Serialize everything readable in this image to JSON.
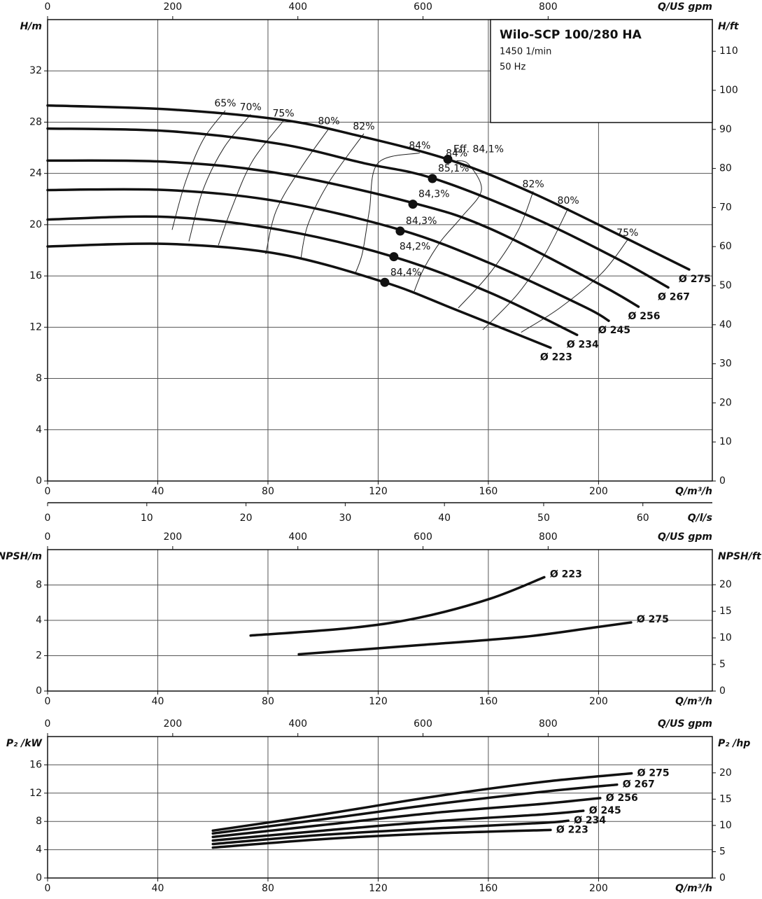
{
  "chart_data": [
    {
      "type": "line",
      "y_label": "H/m",
      "y2_label": "H/ft",
      "x_label": "Q/m³/h",
      "x2_label": "Q/US gpm",
      "x3_label": "Q/l/s",
      "info_box": {
        "title": "Wilo-SCP 100/280 HA",
        "lines": [
          "1450 1/min",
          "50 Hz"
        ]
      },
      "xlim": [
        0,
        241.3
      ],
      "xticks": [
        0,
        40,
        80,
        120,
        160,
        200
      ],
      "x2lim": [
        0,
        1062.4
      ],
      "x2ticks": [
        0,
        200,
        400,
        600,
        800
      ],
      "x3lim": [
        0,
        67.0
      ],
      "x3ticks": [
        0,
        10,
        20,
        30,
        40,
        50,
        60
      ],
      "ylim": [
        0,
        36
      ],
      "yticks": [
        0,
        4,
        8,
        12,
        16,
        20,
        24,
        28,
        32
      ],
      "y2lim": [
        0,
        118.1
      ],
      "y2ticks": [
        0,
        10,
        20,
        30,
        40,
        50,
        60,
        70,
        80,
        90,
        100,
        110
      ],
      "grid": true,
      "series": [
        {
          "name": "Ø 275",
          "color": "#111111",
          "x": [
            0,
            43.7,
            84.3,
            109.7,
            145.3,
            175.7,
            211.3,
            232.9
          ],
          "values": [
            29.3,
            29.0,
            28.2,
            27.1,
            25.1,
            22.5,
            18.8,
            16.5
          ]
        },
        {
          "name": "Ø 267",
          "color": "#111111",
          "x": [
            0,
            43.7,
            84.3,
            114.8,
            140.2,
            175.7,
            206.2,
            225.3
          ],
          "values": [
            27.5,
            27.3,
            26.3,
            24.8,
            23.6,
            20.6,
            17.4,
            15.1
          ]
        },
        {
          "name": "Ø 256",
          "color": "#111111",
          "x": [
            0,
            43.7,
            84.3,
            132.6,
            160.5,
            199.9,
            214.5
          ],
          "values": [
            25.0,
            24.9,
            24.0,
            21.7,
            19.7,
            15.4,
            13.6
          ]
        },
        {
          "name": "Ø 245",
          "color": "#111111",
          "x": [
            0,
            43.7,
            84.3,
            128,
            160.5,
            194.8,
            203.7
          ],
          "values": [
            22.7,
            22.7,
            21.8,
            19.6,
            17.0,
            13.6,
            12.5
          ]
        },
        {
          "name": "Ø 234",
          "color": "#111111",
          "x": [
            0,
            43.7,
            84.3,
            125.5,
            160.5,
            192.2
          ],
          "values": [
            20.4,
            20.6,
            19.6,
            17.5,
            14.7,
            11.4
          ]
        },
        {
          "name": "Ø 223",
          "color": "#111111",
          "x": [
            0,
            43.7,
            84.3,
            122.4,
            147.8,
            182.6
          ],
          "values": [
            18.3,
            18.5,
            17.7,
            15.5,
            13.4,
            10.4
          ]
        }
      ],
      "points": [
        {
          "label": "Eff. 84,1%",
          "x": 145.3,
          "y": 25.1
        },
        {
          "label": "85,1%",
          "x": 139.7,
          "y": 23.6
        },
        {
          "label": "84,3%",
          "x": 132.6,
          "y": 21.6
        },
        {
          "label": "84,3%",
          "x": 128,
          "y": 19.5
        },
        {
          "label": "84,2%",
          "x": 125.7,
          "y": 17.5
        },
        {
          "label": "84,4%",
          "x": 122.4,
          "y": 15.5
        }
      ],
      "contours": [
        {
          "label": "65%",
          "x": [
            64.5,
            56.4,
            50,
            45.2
          ],
          "y": [
            28.9,
            26.6,
            23.3,
            19.6
          ]
        },
        {
          "label": "70%",
          "x": [
            73.7,
            64,
            56.4,
            51.3
          ],
          "y": [
            28.6,
            26.0,
            22.7,
            18.7
          ]
        },
        {
          "label": "75%",
          "x": [
            85.6,
            74.2,
            66.5,
            62
          ],
          "y": [
            28.1,
            24.9,
            21.1,
            18.4
          ]
        },
        {
          "label": "80%",
          "x": [
            102.1,
            91.9,
            83,
            79.2
          ],
          "y": [
            27.5,
            24.4,
            21.1,
            17.7
          ]
        },
        {
          "label": "82%",
          "x": [
            114.8,
            102.1,
            94.5,
            91.9
          ],
          "y": [
            27.1,
            23.3,
            20.0,
            17.3
          ]
        },
        {
          "label": "84%",
          "x": [
            135.1,
            119.9,
            116.8,
            114.3,
            111.7
          ],
          "y": [
            25.6,
            24.8,
            21.1,
            17.8,
            16.2
          ]
        },
        {
          "label": "84%",
          "x": [
            148.5,
            152.9,
            157.5,
            150.3,
            142.7,
            136.4,
            133.1
          ],
          "y": [
            25.0,
            24.7,
            22.7,
            20.6,
            18.7,
            16.5,
            14.8
          ]
        },
        {
          "label": "82%",
          "x": [
            176.3,
            170.7,
            160.5,
            149.1
          ],
          "y": [
            22.6,
            19.5,
            16.2,
            13.5
          ]
        },
        {
          "label": "80%",
          "x": [
            189,
            180.8,
            170.7,
            158
          ],
          "y": [
            21.3,
            17.8,
            14.6,
            11.8
          ]
        },
        {
          "label": "75%",
          "x": [
            210.5,
            201.1,
            185.9,
            171.9
          ],
          "y": [
            18.8,
            16.2,
            13.5,
            11.6
          ]
        }
      ]
    },
    {
      "type": "line",
      "y_label": "NPSH/m",
      "y2_label": "NPSH/ft",
      "x_label": "Q/m³/h",
      "x2_label": "Q/US gpm",
      "xlim": [
        0,
        241.3
      ],
      "xticks": [
        0,
        40,
        80,
        120,
        160,
        200
      ],
      "x2lim": [
        0,
        1062.4
      ],
      "x2ticks": [
        0,
        200,
        400,
        600,
        800
      ],
      "ylim": [
        0,
        16
      ],
      "yticks": [
        0,
        2,
        4,
        8
      ],
      "yscale": "stepped",
      "y2lim": [
        0,
        26.6
      ],
      "y2ticks": [
        0,
        5,
        10,
        15,
        20
      ],
      "grid": true,
      "series": [
        {
          "name": "Ø 223",
          "color": "#111111",
          "x": [
            73.7,
            110,
            135,
            160.5,
            180.3
          ],
          "values": [
            3.14,
            3.57,
            4.31,
            6.43,
            9.76
          ]
        },
        {
          "name": "Ø 275",
          "color": "#111111",
          "x": [
            91.2,
            135,
            173,
            198.6,
            211.8
          ],
          "values": [
            2.08,
            2.6,
            3.07,
            3.6,
            3.88
          ]
        }
      ]
    },
    {
      "type": "line",
      "y_label": "P₂ /kW",
      "y2_label": "P₂ /hp",
      "x_label": "Q/m³/h",
      "x2_label": "Q/US gpm",
      "xlim": [
        0,
        241.3
      ],
      "xticks": [
        0,
        40,
        80,
        120,
        160,
        200
      ],
      "x2lim": [
        0,
        1062.4
      ],
      "x2ticks": [
        0,
        200,
        400,
        600,
        800
      ],
      "ylim": [
        0,
        20
      ],
      "yticks": [
        0,
        4,
        8,
        12,
        16
      ],
      "y2lim": [
        0,
        26.9
      ],
      "y2ticks": [
        0,
        5,
        10,
        15,
        20
      ],
      "grid": true,
      "series": [
        {
          "name": "Ø 275",
          "color": "#111111",
          "x": [
            60,
            100,
            140,
            180,
            212
          ],
          "values": [
            6.7,
            9.0,
            11.5,
            13.6,
            14.8
          ]
        },
        {
          "name": "Ø 267",
          "color": "#111111",
          "x": [
            60,
            100,
            140,
            180,
            206.7
          ],
          "values": [
            6.3,
            8.3,
            10.4,
            12.2,
            13.2
          ]
        },
        {
          "name": "Ø 256",
          "color": "#111111",
          "x": [
            60,
            100,
            140,
            180,
            200.6
          ],
          "values": [
            5.8,
            7.5,
            9.2,
            10.5,
            11.3
          ]
        },
        {
          "name": "Ø 245",
          "color": "#111111",
          "x": [
            60,
            100,
            140,
            180,
            194.5
          ],
          "values": [
            5.3,
            6.7,
            8.0,
            9.0,
            9.5
          ]
        },
        {
          "name": "Ø 234",
          "color": "#111111",
          "x": [
            60,
            100,
            140,
            180,
            189
          ],
          "values": [
            4.8,
            6.1,
            7.0,
            7.8,
            8.1
          ]
        },
        {
          "name": "Ø 223",
          "color": "#111111",
          "x": [
            60,
            100,
            140,
            182.6
          ],
          "values": [
            4.3,
            5.5,
            6.3,
            6.8
          ]
        }
      ]
    }
  ]
}
